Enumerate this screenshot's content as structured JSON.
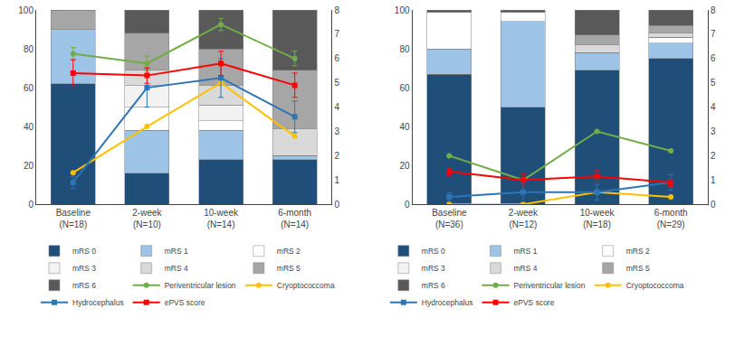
{
  "chart_data": [
    {
      "type": "bar",
      "stacked": true,
      "legend": "bottom",
      "grid": false,
      "categories": [
        "Baseline\n(N=18)",
        "2-week\n(N=10)",
        "10-week\n(N=14)",
        "6-month\n(N=14)"
      ],
      "ylim": [
        0,
        100
      ],
      "yticks": [
        0,
        20,
        40,
        60,
        80,
        100
      ],
      "y2lim": [
        0,
        8
      ],
      "y2ticks": [
        0,
        1,
        2,
        3,
        4,
        5,
        6,
        7,
        8
      ],
      "series": [
        {
          "name": "mRS 0",
          "color": "#1f4e79",
          "values": [
            62,
            16,
            23,
            23
          ]
        },
        {
          "name": "mRS 1",
          "color": "#9dc3e6",
          "values": [
            28,
            22,
            15,
            2
          ]
        },
        {
          "name": "mRS 2",
          "color": "#ffffff",
          "values": [
            0,
            12,
            5,
            0
          ]
        },
        {
          "name": "mRS 3",
          "color": "#f2f2f2",
          "values": [
            0,
            11,
            8,
            0
          ]
        },
        {
          "name": "mRS 4",
          "color": "#d9d9d9",
          "values": [
            0,
            8,
            10,
            14
          ]
        },
        {
          "name": "mRS 5",
          "color": "#a6a6a6",
          "values": [
            10,
            19,
            19,
            30
          ]
        },
        {
          "name": "mRS 6",
          "color": "#595959",
          "values": [
            0,
            12,
            20,
            31
          ]
        },
        {
          "name": "Periventricular lesion",
          "type": "line",
          "axis": "y2",
          "color": "#70ad47",
          "marker": "circle",
          "values": [
            6.2,
            5.8,
            7.4,
            6.0
          ],
          "error": [
            0.25,
            0.3,
            0.25,
            0.3
          ]
        },
        {
          "name": "Cryoptococcoma",
          "type": "line",
          "axis": "y2",
          "color": "#ffc000",
          "marker": "circle",
          "values": [
            1.3,
            3.2,
            5.0,
            2.8
          ]
        },
        {
          "name": "Hydrocephalus",
          "type": "line",
          "axis": "y2",
          "color": "#2e75b6",
          "marker": "square",
          "values": [
            0.9,
            4.8,
            5.2,
            3.6
          ],
          "error": [
            0.25,
            0.8,
            0.8,
            0.65
          ]
        },
        {
          "name": "ePVS score",
          "type": "line",
          "axis": "y2",
          "color": "#ff0000",
          "marker": "square",
          "values": [
            5.4,
            5.3,
            5.8,
            4.9
          ],
          "error": [
            0.55,
            0.32,
            0.5,
            0.5
          ]
        }
      ]
    },
    {
      "type": "bar",
      "stacked": true,
      "legend": "bottom",
      "grid": false,
      "categories": [
        "Baseline\n(N=36)",
        "2-week\n(N=12)",
        "10-week\n(N=18)",
        "6-month\n(N=29)"
      ],
      "ylim": [
        0,
        100
      ],
      "yticks": [
        0,
        20,
        40,
        60,
        80,
        100
      ],
      "y2lim": [
        0,
        8
      ],
      "y2ticks": [
        0,
        1,
        2,
        3,
        4,
        5,
        6,
        7,
        8
      ],
      "series": [
        {
          "name": "mRS 0",
          "color": "#1f4e79",
          "values": [
            67,
            50,
            69,
            75
          ]
        },
        {
          "name": "mRS 1",
          "color": "#9dc3e6",
          "values": [
            13,
            44,
            9,
            8
          ]
        },
        {
          "name": "mRS 2",
          "color": "#ffffff",
          "values": [
            19,
            5,
            0,
            3
          ]
        },
        {
          "name": "mRS 3",
          "color": "#f2f2f2",
          "values": [
            0,
            0,
            0,
            0
          ]
        },
        {
          "name": "mRS 4",
          "color": "#d9d9d9",
          "values": [
            0,
            0,
            4,
            2
          ]
        },
        {
          "name": "mRS 5",
          "color": "#a6a6a6",
          "values": [
            0,
            0,
            5,
            4
          ]
        },
        {
          "name": "mRS 6",
          "color": "#595959",
          "values": [
            1,
            1,
            13,
            8
          ]
        },
        {
          "name": "Periventricular lesion",
          "type": "line",
          "axis": "y2",
          "color": "#70ad47",
          "marker": "circle",
          "values": [
            2.0,
            1.0,
            3.0,
            2.2
          ],
          "error": [
            0,
            0,
            0,
            0
          ]
        },
        {
          "name": "Cryoptococcoma",
          "type": "line",
          "axis": "y2",
          "color": "#ffc000",
          "marker": "circle",
          "values": [
            0,
            0,
            0.5,
            0.3
          ]
        },
        {
          "name": "Hydrocephalus",
          "type": "line",
          "axis": "y2",
          "color": "#2e75b6",
          "marker": "square",
          "values": [
            0.3,
            0.5,
            0.5,
            0.9
          ],
          "error": [
            0.18,
            0.4,
            0.32,
            0.32
          ]
        },
        {
          "name": "ePVS score",
          "type": "line",
          "axis": "y2",
          "color": "#ff0000",
          "marker": "square",
          "values": [
            1.35,
            1.0,
            1.15,
            0.9
          ],
          "error": [
            0.16,
            0.24,
            0.24,
            0.16
          ]
        }
      ]
    }
  ]
}
